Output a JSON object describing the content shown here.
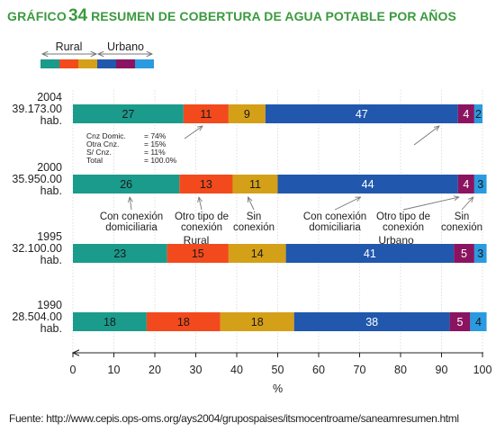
{
  "header": {
    "label": "GRÁFICO",
    "number": "34",
    "text": "RESUMEN DE COBERTURA DE AGUA POTABLE POR AÑOS"
  },
  "chart_data": {
    "type": "bar",
    "orientation": "horizontal",
    "stacked": true,
    "categories": [
      "2004\n39.173.00\nhab.",
      "2000\n35.950.00\nhab.",
      "1995\n32.100.00\nhab.",
      "1990\n28.504.00\nhab."
    ],
    "series": [
      {
        "group": "Rural",
        "color": "#1a9b8c",
        "values": [
          27,
          26,
          23,
          18
        ]
      },
      {
        "group": "Rural",
        "color": "#f24a1c",
        "values": [
          11,
          13,
          15,
          18
        ]
      },
      {
        "group": "Rural",
        "color": "#d4a018",
        "values": [
          9,
          11,
          14,
          18
        ]
      },
      {
        "group": "Urbano",
        "color": "#2158ad",
        "values": [
          47,
          44,
          41,
          38
        ]
      },
      {
        "group": "Urbano",
        "color": "#8a1460",
        "values": [
          4,
          4,
          5,
          5
        ]
      },
      {
        "group": "Urbano",
        "color": "#2a9be0",
        "values": [
          2,
          3,
          3,
          4
        ]
      }
    ],
    "xlim": [
      0,
      100
    ],
    "xticks": [
      0,
      10,
      20,
      30,
      40,
      50,
      60,
      70,
      80,
      90,
      100
    ],
    "xlabel": "%",
    "legend": {
      "groups": [
        "Rural",
        "Urbano"
      ],
      "placement": "top-left"
    },
    "summary_note": [
      [
        "Cnz Domic.",
        "= 74%"
      ],
      [
        "Otra Cnz.",
        "= 15%"
      ],
      [
        "S/ Cnz.",
        "= 11%"
      ],
      [
        "Total",
        "= 100.0%"
      ]
    ],
    "annotations": {
      "rural_label": "Rural",
      "urbano_label": "Urbano",
      "segments": [
        {
          "text": "Con conexión\ndomiciliaria",
          "group": "rural"
        },
        {
          "text": "Otro tipo de\nconexión",
          "group": "rural"
        },
        {
          "text": "Sin\nconexión",
          "group": "rural"
        },
        {
          "text": "Con conexión\ndomiciliaria",
          "group": "urbano"
        },
        {
          "text": "Otro tipo de\nconexión",
          "group": "urbano"
        },
        {
          "text": "Sin\nconexión",
          "group": "urbano"
        }
      ]
    }
  },
  "source": "Fuente: http://www.cepis.ops-oms.org/ays2004/grupospaises/itsmocentroame/saneamresumen.html"
}
